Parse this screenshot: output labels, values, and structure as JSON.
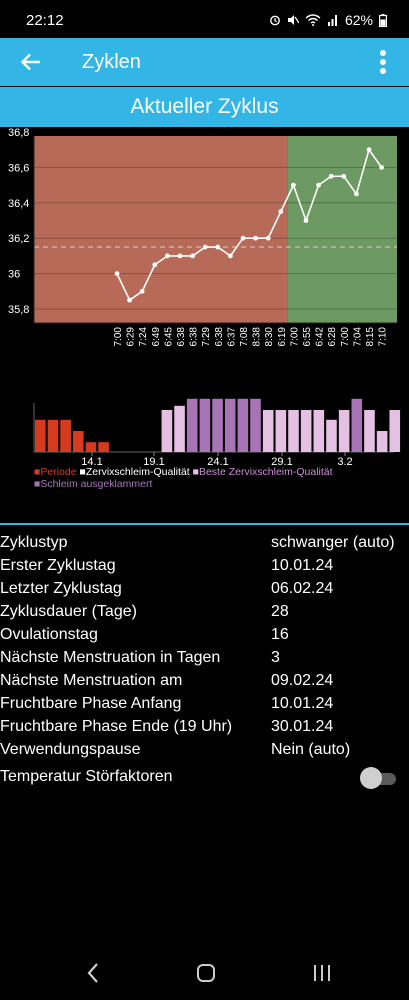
{
  "status": {
    "time": "22:12",
    "battery": "62%"
  },
  "appbar": {
    "title": "Zyklen"
  },
  "subheader": "Aktueller Zyklus",
  "chart_data": [
    {
      "type": "line",
      "ylim": [
        35.7,
        36.8
      ],
      "ytick_labels": [
        "36,8",
        "36,6",
        "36,4",
        "36,2",
        "36",
        "35,8"
      ],
      "yticks": [
        36.8,
        36.6,
        36.4,
        36.2,
        36.0,
        35.8
      ],
      "x": [
        "7:00",
        "6:29",
        "7:24",
        "6:49",
        "6:45",
        "6:38",
        "6:38",
        "7:29",
        "6:38",
        "6:37",
        "7:08",
        "8:38",
        "8:30",
        "6:19",
        "7:00",
        "6:55",
        "6:42",
        "6:28",
        "7:00",
        "7:04",
        "8:15",
        "7:10"
      ],
      "values": [
        36.0,
        35.85,
        35.9,
        36.05,
        36.1,
        36.1,
        36.1,
        36.15,
        36.15,
        36.1,
        36.2,
        36.2,
        36.2,
        36.35,
        36.5,
        36.3,
        36.5,
        36.55,
        36.55,
        36.45,
        36.7,
        36.6
      ],
      "phase_split_after_index": 13,
      "phase_colors": [
        "#b86a58",
        "#6d9a62"
      ],
      "reference_line": 36.15
    },
    {
      "type": "bar",
      "x_tick_labels": [
        "14.1",
        "19.1",
        "24.1",
        "29.1",
        "3.2"
      ],
      "period_days": 6,
      "mucus_values": [
        0,
        0,
        0,
        0,
        0,
        0,
        0,
        0,
        0,
        0,
        3,
        3.3,
        3.8,
        3.8,
        3.8,
        3.8,
        3.8,
        3.8,
        3,
        3,
        3,
        3,
        3,
        2.3,
        3,
        3.8,
        3,
        1.5,
        3
      ],
      "mucus_kind": [
        0,
        0,
        0,
        0,
        0,
        0,
        0,
        0,
        0,
        0,
        1,
        1,
        2,
        2,
        2,
        2,
        2,
        2,
        1,
        1,
        1,
        1,
        1,
        1,
        1,
        2,
        1,
        1,
        1
      ],
      "period_values": [
        2.3,
        2.3,
        2.3,
        1.5,
        0.7,
        0.7
      ],
      "dots_days": [
        10,
        14,
        16
      ],
      "colors": {
        "period": "#d63a1f",
        "mucus": "#e4c1e2",
        "best": "#a774b6",
        "dot": "#e54820"
      },
      "legend": [
        "Periode",
        "Zervixschleim-Qualität",
        "Beste Zervixschleim-Qualität",
        "Schleim ausgeklammert"
      ]
    }
  ],
  "info": [
    {
      "key": "Zyklustyp",
      "value": "schwanger (auto)"
    },
    {
      "key": "Erster Zyklustag",
      "value": "10.01.24"
    },
    {
      "key": "Letzter Zyklustag",
      "value": "06.02.24"
    },
    {
      "key": "Zyklusdauer (Tage)",
      "value": "28"
    },
    {
      "key": "Ovulationstag",
      "value": "16"
    },
    {
      "key": "Nächste Menstruation in Tagen",
      "value": "3"
    },
    {
      "key": "Nächste Menstruation am",
      "value": "09.02.24"
    },
    {
      "key": "Fruchtbare Phase Anfang",
      "value": "10.01.24"
    },
    {
      "key": "Fruchtbare Phase Ende (19 Uhr)",
      "value": "30.01.24"
    },
    {
      "key": "Verwendungspause",
      "value": "Nein (auto)"
    },
    {
      "key": "Temperatur Störfaktoren",
      "value": ""
    }
  ],
  "toggle": {
    "state": "off"
  }
}
